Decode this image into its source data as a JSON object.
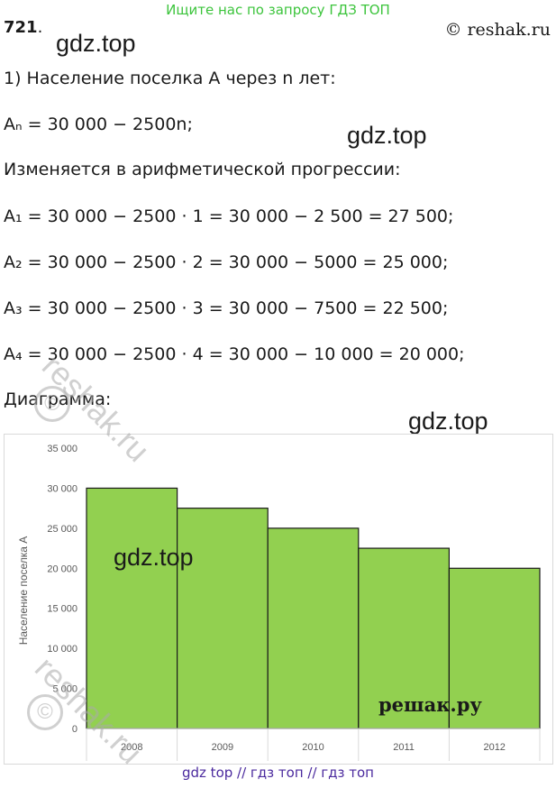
{
  "header": {
    "banner": "Ищите нас по запросу ГДЗ ТОП",
    "task_number": "721",
    "task_dot": ".",
    "copyright": "© reshak.ru"
  },
  "watermarks": {
    "gdz": "gdz.top",
    "reshak": "reshak.ru",
    "reshak_copy": "©",
    "reshak_ru": "решак.ру"
  },
  "content": {
    "line1": "1) Население поселка A через n лет:",
    "formula_main": "Aₙ = 30 000 − 2500n;",
    "line_progression": "Изменяется в арифметической прогрессии:",
    "a1": "A₁ = 30 000 − 2500 · 1 = 30 000 − 2 500 = 27 500;",
    "a2": "A₂ = 30 000 − 2500 · 2 = 30 000 − 5000 = 25 000;",
    "a3": "A₃ = 30 000 − 2500 · 3 = 30 000 − 7500 = 22 500;",
    "a4": "A₄ = 30 000 − 2500 · 4 = 30 000 − 10 000 = 20 000;",
    "diagram_label": "Диаграмма:"
  },
  "chart_data": {
    "type": "bar",
    "categories": [
      "2008",
      "2009",
      "2010",
      "2011",
      "2012"
    ],
    "values": [
      30000,
      27500,
      25000,
      22500,
      20000
    ],
    "ylabel": "Население поселка А",
    "ylim": [
      0,
      35000
    ],
    "yticks": [
      "0",
      "5 000",
      "10 000",
      "15 000",
      "20 000",
      "25 000",
      "30 000",
      "35 000"
    ],
    "grid": false,
    "bar_color": "#92d050",
    "bar_edge_color": "#1a1a1a"
  },
  "footer": {
    "text": "gdz top  //  гдз топ  //  гдз топ"
  }
}
